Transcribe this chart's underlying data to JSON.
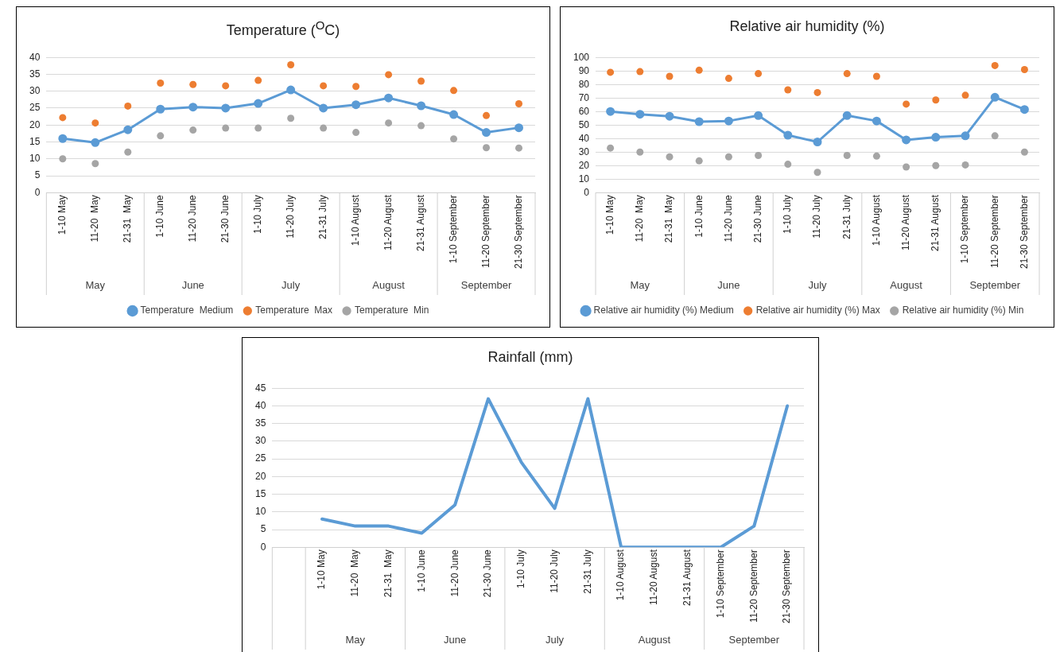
{
  "chart_data": [
    {
      "type": "line",
      "title": "Temperature ($^{O}$C)",
      "categories": [
        "1-10 May",
        "11-20  May",
        "21-31  May",
        "1-10 June",
        "11-20 June",
        "21-30 June",
        "1-10 July",
        "11-20 July",
        "21-31 July",
        "1-10 August",
        "11-20 August",
        "21-31 August",
        "1-10 September",
        "11-20 September",
        "21-30 September"
      ],
      "series": [
        {
          "name": "Temperature  Medium",
          "type": "line",
          "color": "#5b9bd5",
          "values": [
            16,
            14.8,
            18.6,
            24.7,
            25.3,
            25,
            26.4,
            30.4,
            25,
            26,
            28,
            25.7,
            23.1,
            17.8,
            19.2
          ]
        },
        {
          "name": "Temperature  Max",
          "type": "scatter",
          "color": "#ed7d31",
          "values": [
            22.2,
            20.6,
            25.6,
            32.4,
            32,
            31.6,
            33.2,
            37.8,
            31.6,
            31.4,
            34.9,
            33,
            30.2,
            22.8,
            26.3
          ]
        },
        {
          "name": "Temperature  Min",
          "type": "scatter",
          "color": "#a5a5a5",
          "values": [
            10,
            8.6,
            12,
            16.8,
            18.5,
            19.1,
            19.1,
            22,
            19.1,
            17.8,
            20.6,
            19.8,
            15.9,
            13.3,
            13.2
          ]
        }
      ],
      "ylim": [
        0,
        40
      ],
      "yticks": [
        0,
        5,
        10,
        15,
        20,
        25,
        30,
        35,
        40
      ],
      "grid": "y",
      "legend": "bottom",
      "marker": "circle",
      "annotations": [
        "May",
        "June",
        "July",
        "August",
        "September"
      ]
    },
    {
      "type": "line",
      "title": "Relative air humidity (%)",
      "categories": [
        "1-10 May",
        "11-20  May",
        "21-31  May",
        "1-10 June",
        "11-20 June",
        "21-30 June",
        "1-10 July",
        "11-20 July",
        "21-31 July",
        "1-10 August",
        "11-20 August",
        "21-31 August",
        "1-10 September",
        "11-20 September",
        "21-30 September"
      ],
      "series": [
        {
          "name": "Relative air humidity (%) Medium",
          "type": "line",
          "color": "#5b9bd5",
          "values": [
            60,
            58,
            56.5,
            52.5,
            53,
            57,
            42.5,
            37.5,
            57,
            53,
            39,
            41,
            42,
            70.5,
            61.5
          ]
        },
        {
          "name": "Relative air humidity (%) Max",
          "type": "scatter",
          "color": "#ed7d31",
          "values": [
            89,
            89.5,
            86,
            90.5,
            84.5,
            88,
            76,
            74,
            88,
            86,
            65.5,
            68.5,
            72,
            94,
            91
          ]
        },
        {
          "name": "Relative air humidity (%) Min",
          "type": "scatter",
          "color": "#a5a5a5",
          "values": [
            33,
            30,
            26.5,
            23.5,
            26.5,
            27.5,
            21,
            15,
            27.5,
            27,
            19,
            20,
            20.5,
            42,
            30
          ]
        }
      ],
      "ylim": [
        0,
        100
      ],
      "yticks": [
        0,
        10,
        20,
        30,
        40,
        50,
        60,
        70,
        80,
        90,
        100
      ],
      "grid": "y",
      "legend": "bottom",
      "marker": "circle",
      "annotations": [
        "May",
        "June",
        "July",
        "August",
        "September"
      ]
    },
    {
      "type": "line",
      "title": "Rainfall (mm)",
      "categories": [
        null,
        "1-10 May",
        "11-20  May",
        "21-31  May",
        "1-10 June",
        "11-20 June",
        "21-30 June",
        "1-10 July",
        "11-20 July",
        "21-31 July",
        "1-10 August",
        "11-20 August",
        "21-31 August",
        "1-10 September",
        "11-20 September",
        "21-30 September"
      ],
      "series": [
        {
          "color": "#5b9bd5",
          "values": [
            null,
            8,
            6,
            6,
            4,
            12,
            42,
            24,
            11,
            42,
            0,
            0,
            0,
            0,
            6,
            40
          ]
        }
      ],
      "ylim": [
        0,
        45
      ],
      "yticks": [
        0,
        5,
        10,
        15,
        20,
        25,
        30,
        35,
        40,
        45
      ],
      "grid": "y",
      "marker": "none",
      "annotations": [
        "May",
        "June",
        "July",
        "August",
        "September"
      ]
    }
  ]
}
